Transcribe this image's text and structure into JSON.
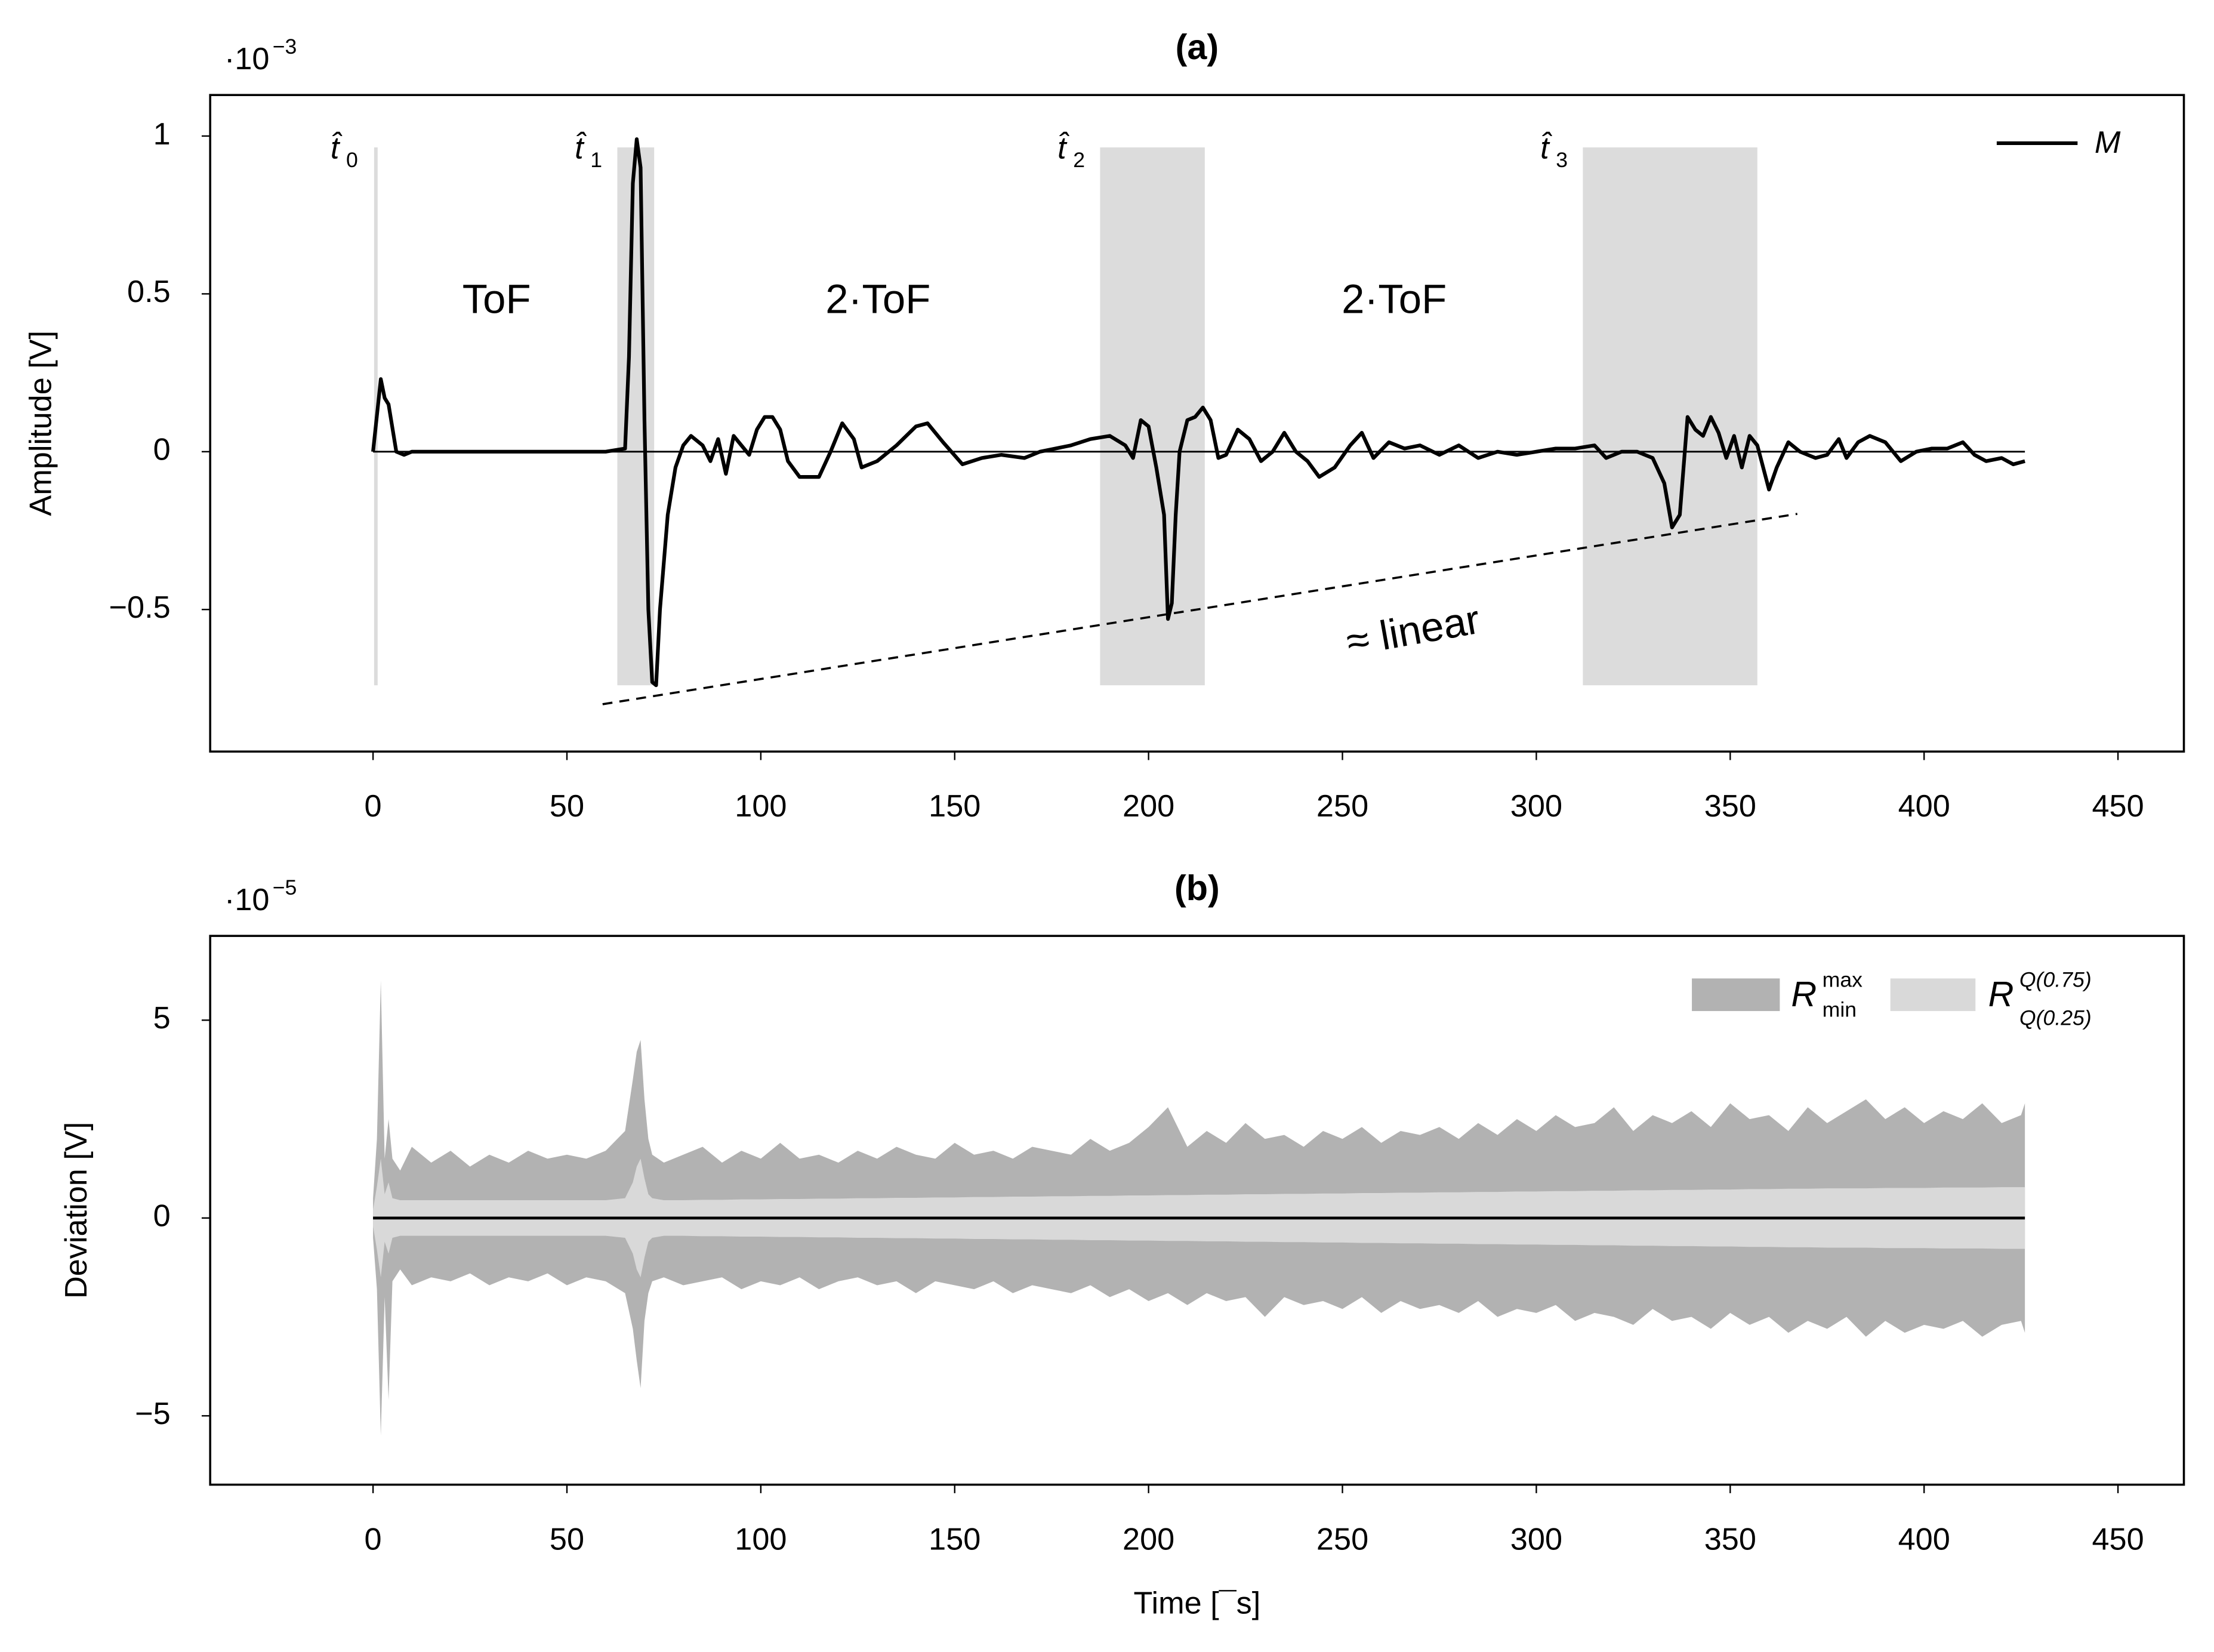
{
  "chart_data": [
    {
      "type": "line",
      "title": "(a)",
      "y_label": "Amplitude [V]",
      "y_multiplier": {
        "base": "·10",
        "exponent": "−3"
      },
      "xlim": [
        -42,
        467
      ],
      "xticks": [
        0,
        50,
        100,
        150,
        200,
        250,
        300,
        350,
        400,
        450
      ],
      "ylim": [
        -0.95,
        1.13
      ],
      "yticks": [
        {
          "value": -0.5,
          "label": "−0.5"
        },
        0,
        0.5,
        1
      ],
      "legend": "top-right",
      "x": [
        0,
        2,
        3,
        4,
        6,
        8,
        10,
        20,
        40,
        60,
        65,
        66,
        67,
        68,
        69,
        70,
        71,
        72,
        73,
        74,
        76,
        78,
        80,
        82,
        85,
        87,
        89,
        91,
        93,
        95,
        97,
        99,
        101,
        103,
        105,
        107,
        110,
        115,
        118,
        121,
        124,
        126,
        130,
        135,
        140,
        143,
        147,
        152,
        157,
        162,
        168,
        172,
        176,
        180,
        185,
        190,
        194,
        196,
        198,
        200,
        202,
        204,
        205,
        206,
        207,
        208,
        210,
        212,
        214,
        216,
        218,
        220,
        223,
        226,
        229,
        232,
        235,
        238,
        241,
        244,
        248,
        252,
        255,
        258,
        262,
        266,
        270,
        275,
        280,
        285,
        290,
        295,
        300,
        305,
        310,
        315,
        318,
        322,
        326,
        330,
        333,
        335,
        337,
        339,
        341,
        343,
        345,
        347,
        349,
        351,
        353,
        355,
        357,
        360,
        362,
        365,
        368,
        372,
        375,
        378,
        380,
        383,
        386,
        390,
        394,
        398,
        402,
        406,
        410,
        413,
        416,
        420,
        423,
        426
      ],
      "series": [
        {
          "name": "M",
          "color": "#000000",
          "values": [
            0,
            0.23,
            0.17,
            0.15,
            0,
            -0.01,
            0,
            0,
            0,
            0,
            0.01,
            0.3,
            0.85,
            0.99,
            0.9,
            0.1,
            -0.5,
            -0.73,
            -0.74,
            -0.5,
            -0.2,
            -0.05,
            0.02,
            0.05,
            0.02,
            -0.03,
            0.04,
            -0.07,
            0.05,
            0.02,
            -0.01,
            0.07,
            0.11,
            0.11,
            0.07,
            -0.03,
            -0.08,
            -0.08,
            0,
            0.09,
            0.04,
            -0.05,
            -0.03,
            0.02,
            0.08,
            0.09,
            0.03,
            -0.04,
            -0.02,
            -0.01,
            -0.02,
            0,
            0.01,
            0.02,
            0.04,
            0.05,
            0.02,
            -0.02,
            0.1,
            0.08,
            -0.05,
            -0.2,
            -0.53,
            -0.48,
            -0.2,
            0,
            0.1,
            0.11,
            0.14,
            0.1,
            -0.02,
            -0.01,
            0.07,
            0.04,
            -0.03,
            0,
            0.06,
            0,
            -0.03,
            -0.08,
            -0.05,
            0.02,
            0.06,
            -0.02,
            0.03,
            0.01,
            0.02,
            -0.01,
            0.02,
            -0.02,
            0,
            -0.01,
            0,
            0.01,
            0.01,
            0.02,
            -0.02,
            0,
            0,
            -0.02,
            -0.1,
            -0.24,
            -0.2,
            0.11,
            0.07,
            0.05,
            0.11,
            0.06,
            -0.02,
            0.05,
            -0.05,
            0.05,
            0.02,
            -0.12,
            -0.05,
            0.03,
            0,
            -0.02,
            -0.01,
            0.04,
            -0.02,
            0.03,
            0.05,
            0.03,
            -0.03,
            0,
            0.01,
            0.01,
            0.03,
            -0.01,
            -0.03,
            -0.02,
            -0.04,
            -0.03
          ]
        }
      ],
      "markers": [
        {
          "label": "t̂",
          "sub": "0",
          "x": 0
        },
        {
          "label": "t̂",
          "sub": "1",
          "x": 63
        },
        {
          "label": "t̂",
          "sub": "2",
          "x": 187.5
        },
        {
          "label": "t̂",
          "sub": "3",
          "x": 312
        }
      ],
      "regions": [
        [
          63,
          72.5
        ],
        [
          187.5,
          214.5
        ],
        [
          312,
          357
        ]
      ],
      "region_ylim": [
        -0.74,
        0.964
      ],
      "region_color": "#dcdcdc",
      "segment_labels": [
        "ToF",
        "2·ToF",
        "2·ToF"
      ],
      "trend": {
        "label": "≈ linear",
        "x": [
          59.2,
          367.3
        ],
        "y": [
          -0.8,
          -0.197
        ]
      }
    },
    {
      "type": "band",
      "title": "(b)",
      "y_label": "Deviation [V]",
      "x_label": "Time [¯s]",
      "y_multiplier": {
        "base": "·10",
        "exponent": "−5"
      },
      "xlim": [
        -42,
        467
      ],
      "xticks": [
        0,
        50,
        100,
        150,
        200,
        250,
        300,
        350,
        400,
        450
      ],
      "ylim": [
        -6.74,
        7.13
      ],
      "yticks": [
        {
          "value": -5,
          "label": "−5"
        },
        0,
        5
      ],
      "legend": "top-right",
      "x": [
        0,
        1,
        2,
        3,
        4,
        5,
        7,
        10,
        15,
        20,
        25,
        30,
        35,
        40,
        45,
        50,
        55,
        60,
        65,
        67,
        68,
        69,
        70,
        71,
        72,
        75,
        80,
        85,
        90,
        95,
        100,
        105,
        110,
        115,
        120,
        125,
        130,
        135,
        140,
        145,
        150,
        155,
        160,
        165,
        170,
        175,
        180,
        185,
        190,
        195,
        200,
        205,
        210,
        215,
        220,
        225,
        230,
        235,
        240,
        245,
        250,
        255,
        260,
        265,
        270,
        275,
        280,
        285,
        290,
        295,
        300,
        305,
        310,
        315,
        320,
        325,
        330,
        335,
        340,
        345,
        350,
        355,
        360,
        365,
        370,
        375,
        380,
        385,
        390,
        395,
        400,
        405,
        410,
        415,
        420,
        425,
        426
      ],
      "series": [
        {
          "name": "R",
          "sup": "max",
          "sub": "min",
          "color": "#b2b2b2",
          "upper": [
            0.5,
            2,
            6,
            1.5,
            2.5,
            1.5,
            1.2,
            1.8,
            1.4,
            1.7,
            1.3,
            1.6,
            1.4,
            1.7,
            1.5,
            1.6,
            1.5,
            1.7,
            2.2,
            3.5,
            4.2,
            4.5,
            3,
            2,
            1.6,
            1.4,
            1.6,
            1.8,
            1.4,
            1.7,
            1.5,
            1.9,
            1.5,
            1.6,
            1.4,
            1.7,
            1.5,
            1.8,
            1.6,
            1.5,
            1.9,
            1.6,
            1.7,
            1.5,
            1.8,
            1.7,
            1.6,
            2,
            1.7,
            1.9,
            2.3,
            2.8,
            1.8,
            2.2,
            1.9,
            2.4,
            2,
            2.1,
            1.8,
            2.2,
            2,
            2.3,
            1.9,
            2.2,
            2.1,
            2.3,
            2,
            2.4,
            2.1,
            2.5,
            2.2,
            2.6,
            2.3,
            2.4,
            2.8,
            2.2,
            2.6,
            2.4,
            2.7,
            2.3,
            2.9,
            2.5,
            2.6,
            2.2,
            2.8,
            2.4,
            2.7,
            3,
            2.5,
            2.8,
            2.4,
            2.7,
            2.5,
            2.9,
            2.4,
            2.6,
            2.9
          ],
          "lower": [
            -0.5,
            -1.8,
            -5.5,
            -2,
            -4.6,
            -1.6,
            -1.3,
            -1.7,
            -1.5,
            -1.6,
            -1.4,
            -1.7,
            -1.5,
            -1.6,
            -1.4,
            -1.7,
            -1.5,
            -1.6,
            -1.9,
            -2.8,
            -3.6,
            -4.3,
            -2.6,
            -1.9,
            -1.6,
            -1.5,
            -1.7,
            -1.6,
            -1.5,
            -1.8,
            -1.6,
            -1.7,
            -1.5,
            -1.8,
            -1.6,
            -1.5,
            -1.7,
            -1.6,
            -1.9,
            -1.6,
            -1.7,
            -1.8,
            -1.6,
            -1.9,
            -1.7,
            -1.8,
            -1.9,
            -1.7,
            -2,
            -1.8,
            -2.1,
            -1.9,
            -2.2,
            -1.9,
            -2.1,
            -2,
            -2.5,
            -2,
            -2.2,
            -2.1,
            -2.3,
            -2,
            -2.4,
            -2.1,
            -2.3,
            -2.2,
            -2.4,
            -2.1,
            -2.5,
            -2.3,
            -2.4,
            -2.2,
            -2.6,
            -2.4,
            -2.5,
            -2.7,
            -2.3,
            -2.6,
            -2.5,
            -2.8,
            -2.4,
            -2.7,
            -2.5,
            -2.9,
            -2.6,
            -2.8,
            -2.5,
            -3,
            -2.6,
            -2.9,
            -2.7,
            -2.8,
            -2.6,
            -3,
            -2.7,
            -2.6,
            -2.9
          ]
        },
        {
          "name": "R",
          "sup": "Q(0.75)",
          "sub": "Q(0.25)",
          "color": "#d9d9d9",
          "upper": [
            0.2,
            0.8,
            1.5,
            0.6,
            0.9,
            0.5,
            0.45,
            0.45,
            0.45,
            0.45,
            0.45,
            0.45,
            0.45,
            0.45,
            0.45,
            0.45,
            0.45,
            0.45,
            0.5,
            0.9,
            1.3,
            1.5,
            1,
            0.6,
            0.5,
            0.45,
            0.45,
            0.46,
            0.46,
            0.47,
            0.47,
            0.48,
            0.48,
            0.49,
            0.49,
            0.5,
            0.5,
            0.51,
            0.51,
            0.52,
            0.52,
            0.53,
            0.53,
            0.54,
            0.54,
            0.55,
            0.55,
            0.56,
            0.56,
            0.57,
            0.57,
            0.58,
            0.58,
            0.59,
            0.59,
            0.6,
            0.6,
            0.61,
            0.61,
            0.62,
            0.62,
            0.63,
            0.63,
            0.64,
            0.64,
            0.65,
            0.65,
            0.66,
            0.66,
            0.67,
            0.67,
            0.68,
            0.68,
            0.69,
            0.69,
            0.7,
            0.7,
            0.71,
            0.71,
            0.72,
            0.72,
            0.73,
            0.73,
            0.74,
            0.74,
            0.75,
            0.75,
            0.75,
            0.76,
            0.76,
            0.76,
            0.77,
            0.77,
            0.77,
            0.78,
            0.78,
            0.78
          ],
          "lower": [
            -0.2,
            -0.8,
            -1.5,
            -0.6,
            -0.9,
            -0.5,
            -0.45,
            -0.45,
            -0.45,
            -0.45,
            -0.45,
            -0.45,
            -0.45,
            -0.45,
            -0.45,
            -0.45,
            -0.45,
            -0.45,
            -0.5,
            -0.9,
            -1.3,
            -1.5,
            -1,
            -0.6,
            -0.5,
            -0.45,
            -0.45,
            -0.46,
            -0.46,
            -0.47,
            -0.47,
            -0.48,
            -0.48,
            -0.49,
            -0.49,
            -0.5,
            -0.5,
            -0.51,
            -0.51,
            -0.52,
            -0.52,
            -0.53,
            -0.53,
            -0.54,
            -0.54,
            -0.55,
            -0.55,
            -0.56,
            -0.56,
            -0.57,
            -0.57,
            -0.58,
            -0.58,
            -0.59,
            -0.59,
            -0.6,
            -0.6,
            -0.61,
            -0.61,
            -0.62,
            -0.62,
            -0.63,
            -0.63,
            -0.64,
            -0.64,
            -0.65,
            -0.65,
            -0.66,
            -0.66,
            -0.67,
            -0.67,
            -0.68,
            -0.68,
            -0.69,
            -0.69,
            -0.7,
            -0.7,
            -0.71,
            -0.71,
            -0.72,
            -0.72,
            -0.73,
            -0.73,
            -0.74,
            -0.74,
            -0.75,
            -0.75,
            -0.75,
            -0.76,
            -0.76,
            -0.76,
            -0.77,
            -0.77,
            -0.77,
            -0.78,
            -0.78,
            -0.78
          ]
        }
      ]
    }
  ]
}
